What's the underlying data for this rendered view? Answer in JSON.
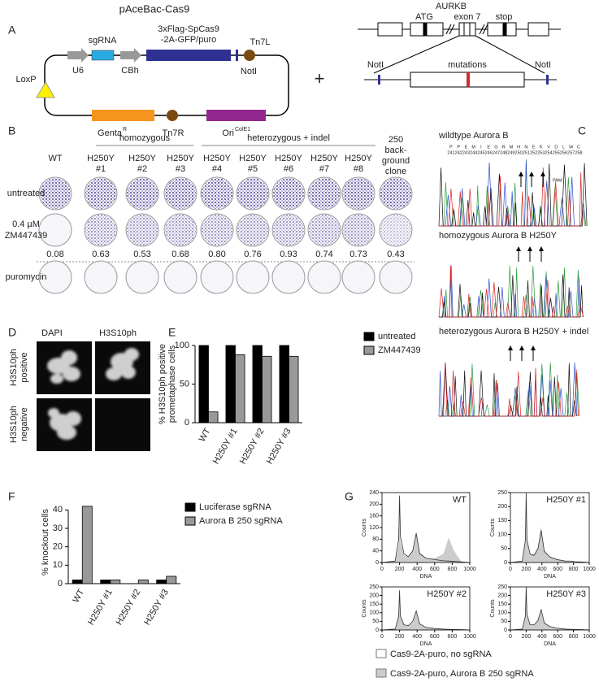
{
  "panels": {
    "a": {
      "label": "A",
      "title": "pAceBac-Cas9",
      "plasmid": {
        "sgrna": "sgRNA",
        "u6": "U6",
        "cbh": "CBh",
        "cas9": [
          "3xFlag-SpCas9",
          "-2A-GFP/puro"
        ],
        "tn7l": "Tn7L",
        "noti": "NotI",
        "loxp": "LoxP",
        "genta": "Genta",
        "genta_sup": "R",
        "tn7r": "Tn7R",
        "ori": "Ori",
        "ori_sup": "ColE1"
      },
      "plus": "+",
      "gene": {
        "name": "AURKB",
        "exon": "exon 7",
        "atg": "ATG",
        "stop": "stop",
        "noti_left": "NotI",
        "noti_right": "NotI",
        "mutations": "mutations"
      }
    },
    "b": {
      "label": "B",
      "groups": [
        "homozygous",
        "heterozygous + indel"
      ],
      "columns": [
        [
          "WT"
        ],
        [
          "H250Y",
          "#1"
        ],
        [
          "H250Y",
          "#2"
        ],
        [
          "H250Y",
          "#3"
        ],
        [
          "H250Y",
          "#4"
        ],
        [
          "H250Y",
          "#5"
        ],
        [
          "H250Y",
          "#6"
        ],
        [
          "H250Y",
          "#7"
        ],
        [
          "H250Y",
          "#8"
        ],
        [
          "250",
          "back-",
          "ground",
          "clone"
        ]
      ],
      "rows": [
        [
          "untreated"
        ],
        [
          "0.4 µM",
          "ZM447439"
        ],
        [
          "puromycin"
        ]
      ],
      "ratios": [
        "0.08",
        "0.63",
        "0.53",
        "0.68",
        "0.80",
        "0.76",
        "0.93",
        "0.74",
        "0.73",
        "0.43"
      ]
    },
    "c": {
      "label": "C",
      "traces": [
        "wildtype Aurora B",
        "homozygous Aurora B H250Y",
        "heterozygous Aurora B H250Y + indel"
      ],
      "residues": [
        "P",
        "P",
        "E",
        "M",
        "I",
        "E",
        "G",
        "R",
        "M",
        "H",
        "N",
        "E",
        "K",
        "V",
        "D",
        "L",
        "W",
        "C"
      ],
      "positions": [
        241,
        242,
        243,
        244,
        245,
        246,
        247,
        248,
        249,
        250,
        251,
        252,
        253,
        254,
        255,
        256,
        257,
        258
      ],
      "pam": "PAM"
    },
    "d": {
      "label": "D",
      "columns": [
        "DAPI",
        "H3S10ph"
      ],
      "rows": [
        [
          "H3S10ph",
          "positive"
        ],
        [
          "H3S10ph",
          "negative"
        ]
      ]
    }
  },
  "chart_data": [
    {
      "panel_label": "E",
      "type": "bar",
      "ylabel": [
        "% H3S10ph positive",
        "prometaphase cells"
      ],
      "categories": [
        "WT",
        "H250Y #1",
        "H250Y #2",
        "H250Y #3"
      ],
      "series": [
        {
          "name": "untreated",
          "color": "#000000",
          "values": [
            100,
            100,
            100,
            100
          ]
        },
        {
          "name": "ZM447439",
          "color": "#999999",
          "values": [
            14,
            88,
            86,
            86
          ]
        }
      ],
      "ylim": [
        0,
        100
      ],
      "yticks": [
        0,
        50,
        100
      ]
    },
    {
      "panel_label": "F",
      "type": "bar",
      "ylabel": [
        "% knockout cells"
      ],
      "categories": [
        "WT",
        "H250Y #1",
        "H250Y #2",
        "H250Y #3"
      ],
      "series": [
        {
          "name": "Luciferase sgRNA",
          "color": "#000000",
          "values": [
            2,
            2,
            0,
            2
          ]
        },
        {
          "name": "Aurora B 250 sgRNA",
          "color": "#999999",
          "values": [
            42,
            2,
            2,
            4
          ]
        }
      ],
      "ylim": [
        0,
        45
      ],
      "yticks": [
        0,
        10,
        20,
        30,
        40
      ]
    },
    {
      "panel_label": "G",
      "type": "area",
      "xlabel": "DNA",
      "ylabel": "Counts",
      "x": [
        0,
        150,
        190,
        200,
        210,
        250,
        300,
        350,
        390,
        430,
        500,
        600,
        700,
        760,
        820,
        900,
        1000
      ],
      "xlim": [
        0,
        1000
      ],
      "xticks": [
        0,
        200,
        400,
        600,
        800,
        1000
      ],
      "series": [
        {
          "name": "Cas9-2A-puro, no sgRNA",
          "color": "#ffffff"
        },
        {
          "name": "Cas9-2A-puro, Aurora B 250 sgRNA",
          "color": "#cccccc"
        }
      ],
      "panels": [
        {
          "title": "WT",
          "ylim": [
            0,
            240
          ],
          "yticks": [
            0,
            40,
            80,
            120,
            160,
            200,
            240
          ],
          "values": [
            [
              0,
              5,
              80,
              230,
              90,
              30,
              20,
              40,
              100,
              30,
              15,
              10,
              6,
              5,
              4,
              2,
              0
            ],
            [
              0,
              5,
              60,
              180,
              70,
              25,
              20,
              40,
              110,
              35,
              15,
              15,
              30,
              85,
              40,
              5,
              0
            ]
          ]
        },
        {
          "title": "H250Y #1",
          "ylim": [
            0,
            250
          ],
          "yticks": [
            0,
            50,
            100,
            150,
            200,
            250
          ],
          "values": [
            [
              0,
              5,
              80,
              250,
              80,
              30,
              25,
              50,
              115,
              40,
              20,
              10,
              5,
              5,
              3,
              2,
              0
            ],
            [
              0,
              5,
              80,
              240,
              80,
              30,
              30,
              55,
              130,
              45,
              20,
              12,
              6,
              5,
              3,
              2,
              0
            ]
          ]
        },
        {
          "title": "H250Y #2",
          "ylim": [
            0,
            250
          ],
          "yticks": [
            0,
            50,
            100,
            150,
            200,
            250
          ],
          "values": [
            [
              0,
              5,
              80,
              230,
              80,
              30,
              25,
              50,
              110,
              35,
              15,
              8,
              5,
              4,
              3,
              2,
              0
            ],
            [
              0,
              5,
              80,
              220,
              75,
              28,
              22,
              45,
              105,
              35,
              15,
              8,
              5,
              4,
              3,
              2,
              0
            ]
          ]
        },
        {
          "title": "H250Y #3",
          "ylim": [
            0,
            250
          ],
          "yticks": [
            0,
            50,
            100,
            150,
            200,
            250
          ],
          "values": [
            [
              0,
              5,
              80,
              250,
              90,
              30,
              30,
              55,
              120,
              40,
              20,
              10,
              5,
              4,
              3,
              2,
              0
            ],
            [
              0,
              5,
              70,
              245,
              85,
              30,
              30,
              60,
              115,
              45,
              20,
              10,
              5,
              4,
              3,
              2,
              0
            ]
          ]
        }
      ]
    }
  ]
}
